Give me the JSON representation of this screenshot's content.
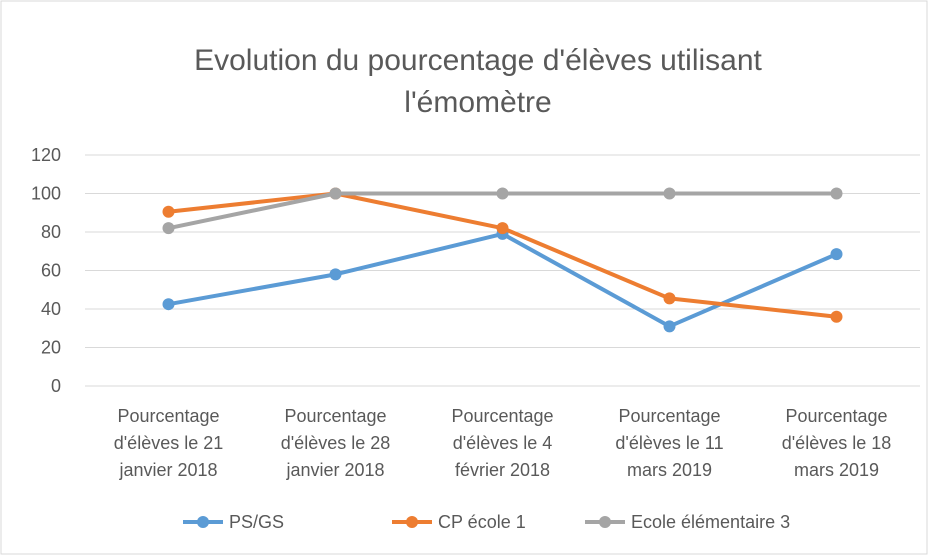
{
  "chart_data": {
    "type": "line",
    "title": "Evolution du pourcentage d'élèves utilisant l'émomètre",
    "categories": [
      "Pourcentage d'élèves le 21 janvier 2018",
      "Pourcentage d'élèves le 28 janvier 2018",
      "Pourcentage d'élèves le 4 février 2018",
      "Pourcentage d'élèves le 11 mars 2019",
      "Pourcentage d'élèves le 18 mars 2019"
    ],
    "series": [
      {
        "name": "PS/GS",
        "color": "#5b9bd5",
        "values": [
          42.5,
          58,
          79,
          31,
          68.5
        ]
      },
      {
        "name": "CP école 1",
        "color": "#ed7d31",
        "values": [
          90.5,
          100,
          82,
          45.5,
          36
        ]
      },
      {
        "name": "Ecole élémentaire 3",
        "color": "#a5a5a5",
        "values": [
          82,
          100,
          100,
          100,
          100
        ]
      }
    ],
    "ylim": [
      0,
      120
    ],
    "yticks": [
      0,
      20,
      40,
      60,
      80,
      100,
      120
    ],
    "grid": true,
    "legend": "bottom"
  }
}
